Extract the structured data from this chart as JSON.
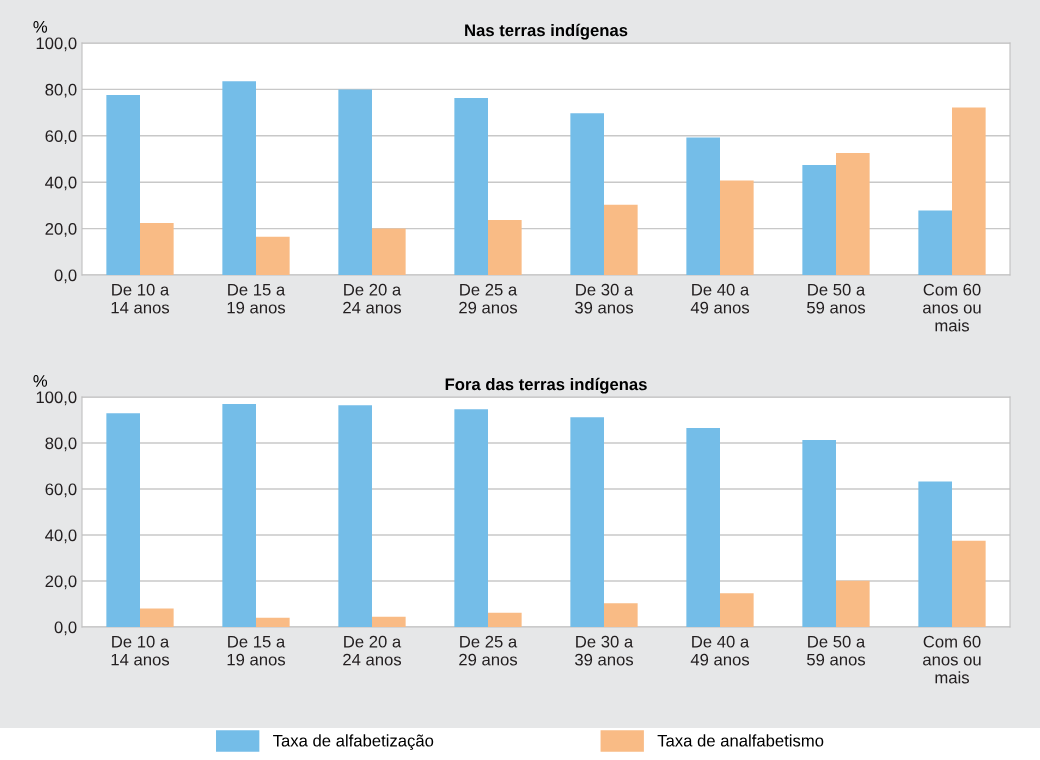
{
  "chart_data": [
    {
      "type": "bar",
      "title": "Nas terras indígenas",
      "ylabel": "%",
      "categories": [
        "De 10 a\n14 anos",
        "De 15 a\n19 anos",
        "De 20 a\n24 anos",
        "De 25 a\n29 anos",
        "De 30 a\n39 anos",
        "De 40 a\n49 anos",
        "De 50 a\n59 anos",
        "Com 60\nanos ou\nmais"
      ],
      "series": [
        {
          "name": "Taxa de alfabetização",
          "color": "#74bde8",
          "values": [
            77.6,
            83.5,
            80.0,
            76.3,
            69.7,
            59.3,
            47.4,
            27.8
          ]
        },
        {
          "name": "Taxa de analfabetismo",
          "color": "#f9bb85",
          "values": [
            22.4,
            16.5,
            20.0,
            23.7,
            30.3,
            40.7,
            52.6,
            72.2
          ]
        }
      ],
      "ylim": [
        0,
        100
      ],
      "yticks": [
        {
          "value": 0,
          "label": "0,0"
        },
        {
          "value": 20,
          "label": "20,0"
        },
        {
          "value": 40,
          "label": "40,0"
        },
        {
          "value": 60,
          "label": "60,0"
        },
        {
          "value": 80,
          "label": "80,0"
        },
        {
          "value": 100,
          "label": "100,0"
        }
      ],
      "grid": "y",
      "legend": "bottom"
    },
    {
      "type": "bar",
      "title": "Fora das terras indígenas",
      "ylabel": "%",
      "categories": [
        "De 10 a\n14 anos",
        "De 15 a\n19 anos",
        "De 20 a\n24 anos",
        "De 25 a\n29 anos",
        "De 30 a\n39 anos",
        "De 40 a\n49 anos",
        "De 50 a\n59 anos",
        "Com 60\nanos ou\nmais"
      ],
      "series": [
        {
          "color": "#74bde8",
          "values": [
            92.9,
            97.0,
            96.4,
            94.7,
            91.2,
            86.5,
            81.3,
            63.3
          ]
        },
        {
          "color": "#f9bb85",
          "values": [
            8.0,
            4.0,
            4.5,
            6.2,
            10.3,
            14.7,
            20.1,
            37.5
          ]
        }
      ],
      "ylim": [
        0,
        100
      ],
      "yticks": [
        {
          "value": 0,
          "label": "0,0"
        },
        {
          "value": 20,
          "label": "20,0"
        },
        {
          "value": 40,
          "label": "40,0"
        },
        {
          "value": 60,
          "label": "60,0"
        },
        {
          "value": 80,
          "label": "80,0"
        },
        {
          "value": 100,
          "label": "100,0"
        }
      ],
      "grid": "y"
    }
  ]
}
